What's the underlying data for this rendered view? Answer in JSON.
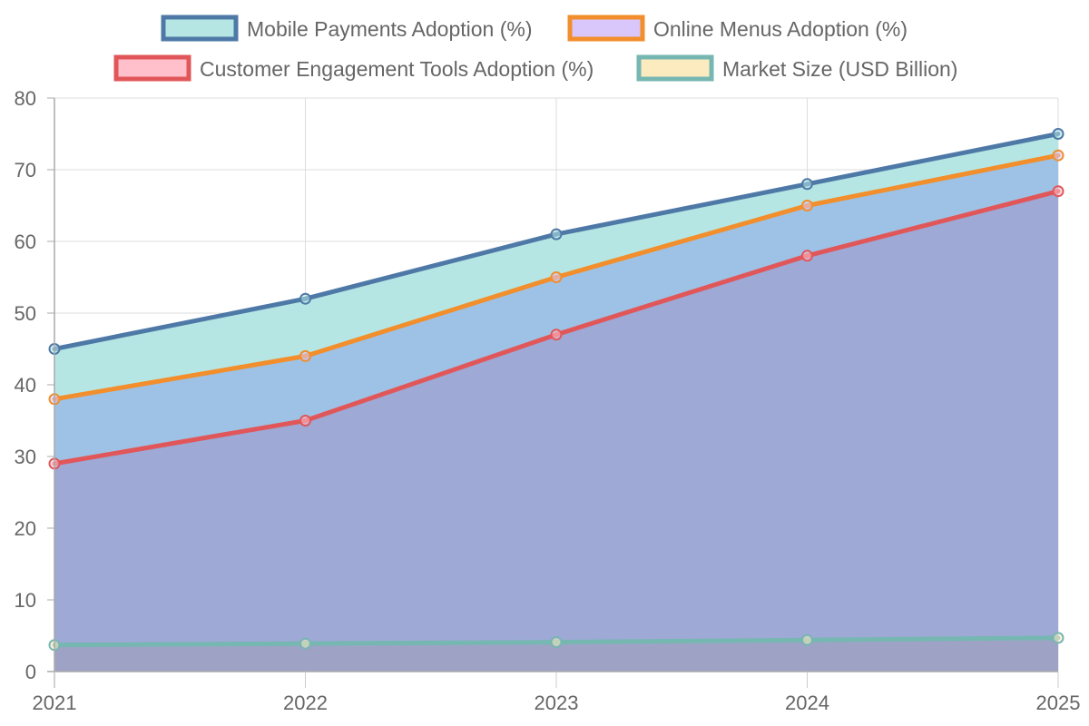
{
  "chart_data": {
    "type": "area",
    "categories": [
      "2021",
      "2022",
      "2023",
      "2024",
      "2025"
    ],
    "series": [
      {
        "name": "Mobile Payments Adoption (%)",
        "values": [
          45,
          52,
          61,
          68,
          75
        ],
        "line_color": "#4e79a7",
        "fill_color": "#b5e6e4"
      },
      {
        "name": "Online Menus Adoption (%)",
        "values": [
          38,
          44,
          55,
          65,
          72
        ],
        "line_color": "#f28e2b",
        "fill_color": "#d9c6fb"
      },
      {
        "name": "Customer Engagement Tools Adoption (%)",
        "values": [
          29,
          35,
          47,
          58,
          67
        ],
        "line_color": "#e15759",
        "fill_color": "#ffc0cb"
      },
      {
        "name": "Market Size (USD Billion)",
        "values": [
          3.7,
          3.9,
          4.1,
          4.4,
          4.7
        ],
        "line_color": "#76b7b2",
        "fill_color": "#fdebc0"
      }
    ],
    "region_fills": {
      "below_mobile": "#b5e6e4",
      "below_online": "#9ec2e5",
      "below_engagement": "#9ea9d6",
      "below_market": "#9ea3c6"
    },
    "y_ticks": [
      "0",
      "10",
      "20",
      "30",
      "40",
      "50",
      "60",
      "70",
      "80"
    ],
    "ylim": [
      0,
      80
    ],
    "grid": true,
    "legend_position": "top"
  }
}
